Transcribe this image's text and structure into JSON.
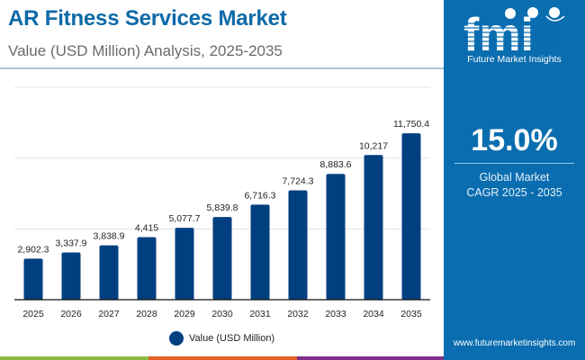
{
  "header": {
    "title": "AR Fitness Services Market",
    "subtitle": "Value (USD Million) Analysis, 2025-2035"
  },
  "side_panel": {
    "logo_text": "fmi",
    "logo_subtitle": "Future Market Insights",
    "cagr_value": "15.0%",
    "cagr_label_line1": "Global Market",
    "cagr_label_line2": "CAGR 2025 - 2035",
    "url": "www.futuremarketinsights.com",
    "panel_color": "#0a6db0"
  },
  "bottom_strip_colors": [
    "#8bbb45",
    "#e0622a",
    "#80308a"
  ],
  "chart_data": {
    "type": "bar",
    "title": "AR Fitness Services Market",
    "subtitle": "Value (USD Million) Analysis, 2025-2035",
    "xlabel": "",
    "ylabel": "",
    "categories": [
      "2025",
      "2026",
      "2027",
      "2028",
      "2029",
      "2030",
      "2031",
      "2032",
      "2033",
      "2034",
      "2035"
    ],
    "series": [
      {
        "name": "Value (USD Million)",
        "color": "#003f80",
        "values": [
          2902.3,
          3337.9,
          3838.9,
          4415,
          5077.7,
          5839.8,
          6716.3,
          7724.3,
          8883.6,
          10217,
          11750.4
        ],
        "labels": [
          "2,902.3",
          "3,337.9",
          "3,838.9",
          "4,415",
          "5,077.7",
          "5,839.8",
          "6,716.3",
          "7,724.3",
          "8,883.6",
          "10,217",
          "11,750.4"
        ]
      }
    ],
    "ylim": [
      0,
      15000
    ],
    "gridlines": [
      5000,
      10000,
      15000
    ],
    "grid": true,
    "y_tick_labels_visible": false,
    "legend": {
      "position": "bottom-center",
      "entries": [
        "Value (USD Million)"
      ]
    }
  }
}
